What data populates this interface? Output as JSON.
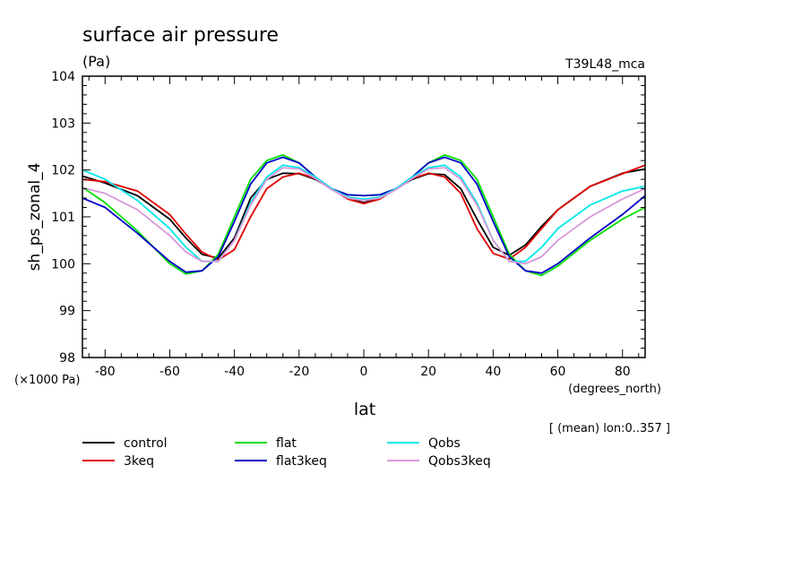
{
  "chart_data": {
    "type": "line",
    "title": "surface air pressure",
    "units": "(Pa)",
    "experiment": "T39L48_mca",
    "ylabel": "sh_ps_zonal_4",
    "xlabel": "lat",
    "x_units": "(degrees_north)",
    "y_scale_note": "(×1000 Pa)",
    "mean_note": "[ (mean) lon:0..357 ]",
    "xlim": [
      -87,
      87
    ],
    "ylim": [
      98,
      104
    ],
    "x_ticks": [
      -80,
      -60,
      -40,
      -20,
      0,
      20,
      40,
      60,
      80
    ],
    "y_ticks": [
      98,
      99,
      100,
      101,
      102,
      103,
      104
    ],
    "x": [
      -87,
      -80,
      -70,
      -60,
      -55,
      -50,
      -45,
      -40,
      -35,
      -30,
      -25,
      -20,
      -15,
      -10,
      -5,
      0,
      5,
      10,
      15,
      20,
      25,
      30,
      35,
      40,
      45,
      50,
      55,
      60,
      70,
      80,
      87
    ],
    "series": [
      {
        "name": "control",
        "color": "#000000",
        "values": [
          101.87,
          101.72,
          101.45,
          100.95,
          100.55,
          100.2,
          100.12,
          100.55,
          101.4,
          101.8,
          101.93,
          101.92,
          101.8,
          101.6,
          101.4,
          101.3,
          101.4,
          101.6,
          101.8,
          101.92,
          101.9,
          101.6,
          100.95,
          100.35,
          100.18,
          100.4,
          100.8,
          101.15,
          101.65,
          101.93,
          102.02
        ]
      },
      {
        "name": "3keq",
        "color": "#e00000",
        "values": [
          101.8,
          101.75,
          101.55,
          101.05,
          100.63,
          100.25,
          100.08,
          100.3,
          101.0,
          101.6,
          101.85,
          101.93,
          101.82,
          101.6,
          101.38,
          101.28,
          101.38,
          101.6,
          101.82,
          101.93,
          101.85,
          101.5,
          100.75,
          100.22,
          100.1,
          100.35,
          100.75,
          101.15,
          101.65,
          101.92,
          102.1
        ]
      },
      {
        "name": "flat",
        "color": "#00e000",
        "values": [
          101.63,
          101.3,
          100.7,
          100.0,
          99.78,
          99.85,
          100.2,
          101.0,
          101.8,
          102.2,
          102.32,
          102.15,
          101.85,
          101.6,
          101.47,
          101.45,
          101.47,
          101.6,
          101.85,
          102.15,
          102.32,
          102.2,
          101.8,
          101.0,
          100.2,
          99.85,
          99.75,
          99.95,
          100.5,
          100.95,
          101.2
        ]
      },
      {
        "name": "flat3keq",
        "color": "#0000c8",
        "values": [
          101.4,
          101.2,
          100.65,
          100.05,
          99.82,
          99.85,
          100.15,
          100.9,
          101.7,
          102.15,
          102.27,
          102.15,
          101.85,
          101.6,
          101.47,
          101.45,
          101.47,
          101.6,
          101.85,
          102.15,
          102.27,
          102.15,
          101.7,
          100.9,
          100.15,
          99.85,
          99.8,
          100.0,
          100.55,
          101.05,
          101.45
        ]
      },
      {
        "name": "Qobs",
        "color": "#00e8e8",
        "values": [
          102.0,
          101.8,
          101.35,
          100.75,
          100.35,
          100.05,
          100.05,
          100.5,
          101.3,
          101.85,
          102.1,
          102.05,
          101.85,
          101.6,
          101.42,
          101.38,
          101.42,
          101.6,
          101.85,
          102.05,
          102.1,
          101.85,
          101.3,
          100.5,
          100.05,
          100.05,
          100.35,
          100.75,
          101.25,
          101.55,
          101.65
        ]
      },
      {
        "name": "Qobs3keq",
        "color": "#d898d8",
        "values": [
          101.62,
          101.5,
          101.15,
          100.6,
          100.25,
          100.05,
          100.05,
          100.5,
          101.25,
          101.8,
          102.05,
          102.02,
          101.82,
          101.58,
          101.4,
          101.35,
          101.4,
          101.58,
          101.82,
          102.02,
          102.05,
          101.8,
          101.25,
          100.5,
          100.05,
          100.0,
          100.15,
          100.5,
          101.0,
          101.38,
          101.6
        ]
      }
    ]
  }
}
